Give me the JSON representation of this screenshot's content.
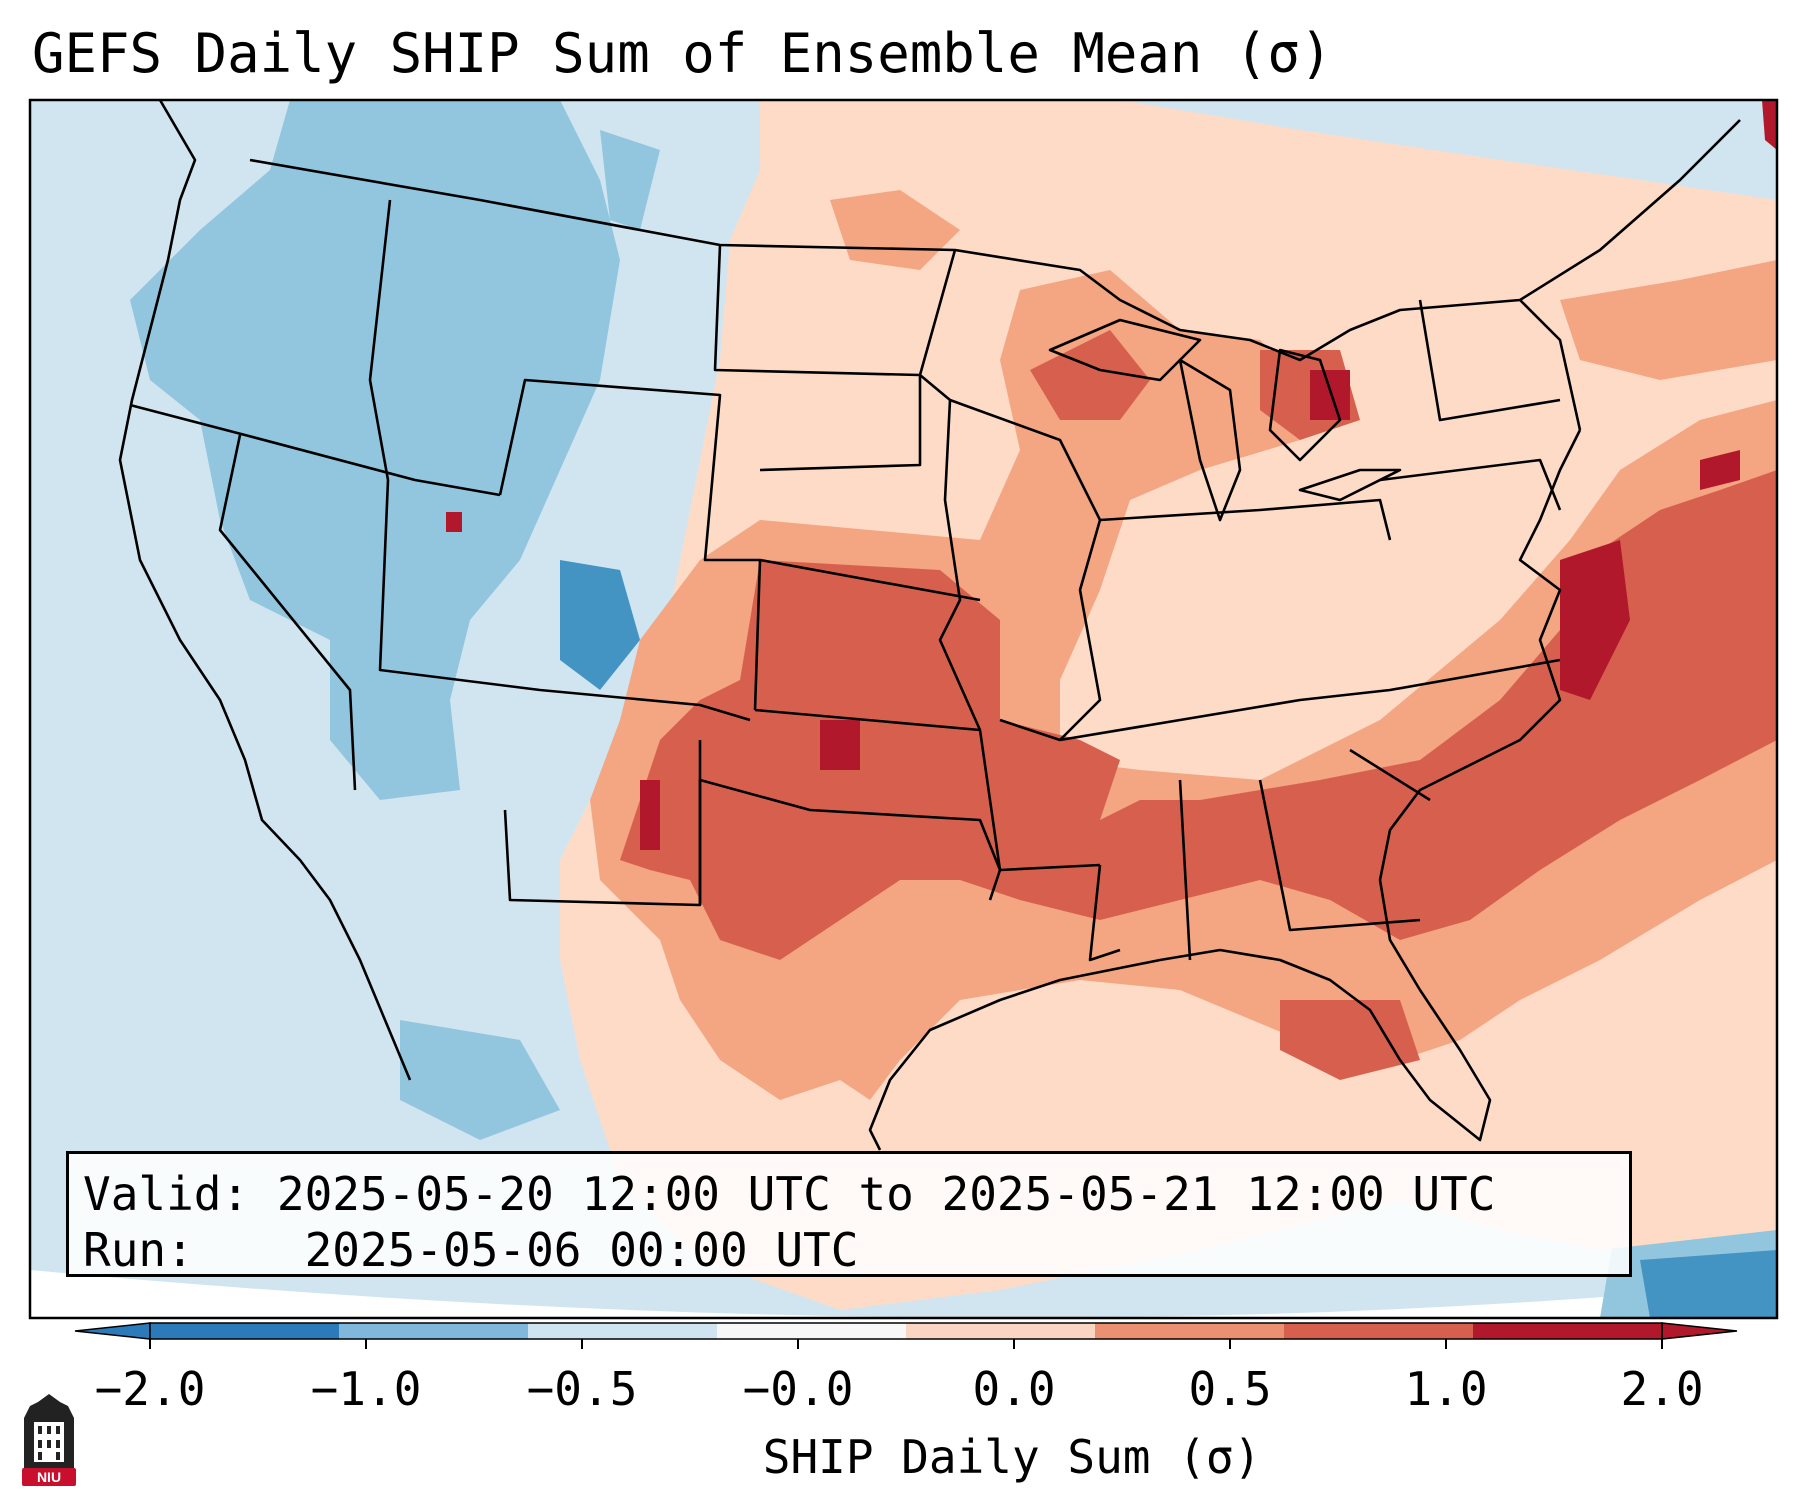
{
  "title": "GEFS Daily SHIP Sum of Ensemble Mean (σ)",
  "info": {
    "valid_label": "Valid:",
    "valid_value": "2025-05-20 12:00 UTC to 2025-05-21 12:00 UTC",
    "run_label": "Run:",
    "run_value": "2025-05-06 00:00 UTC"
  },
  "colorbar": {
    "label": "SHIP Daily Sum (σ)",
    "ticks": [
      "−2.0",
      "−1.0",
      "−0.5",
      "−0.0",
      "0.0",
      "0.5",
      "1.0",
      "2.0"
    ],
    "colors": [
      "#2b7bba",
      "#7fb8da",
      "#cfe3f0",
      "#f7f7f7",
      "#fbd5c3",
      "#eb9172",
      "#d6604d",
      "#b2182b"
    ],
    "extend": "both"
  },
  "logo_text": "NIU",
  "icons": {
    "logo": "niu-tower-logo"
  }
}
